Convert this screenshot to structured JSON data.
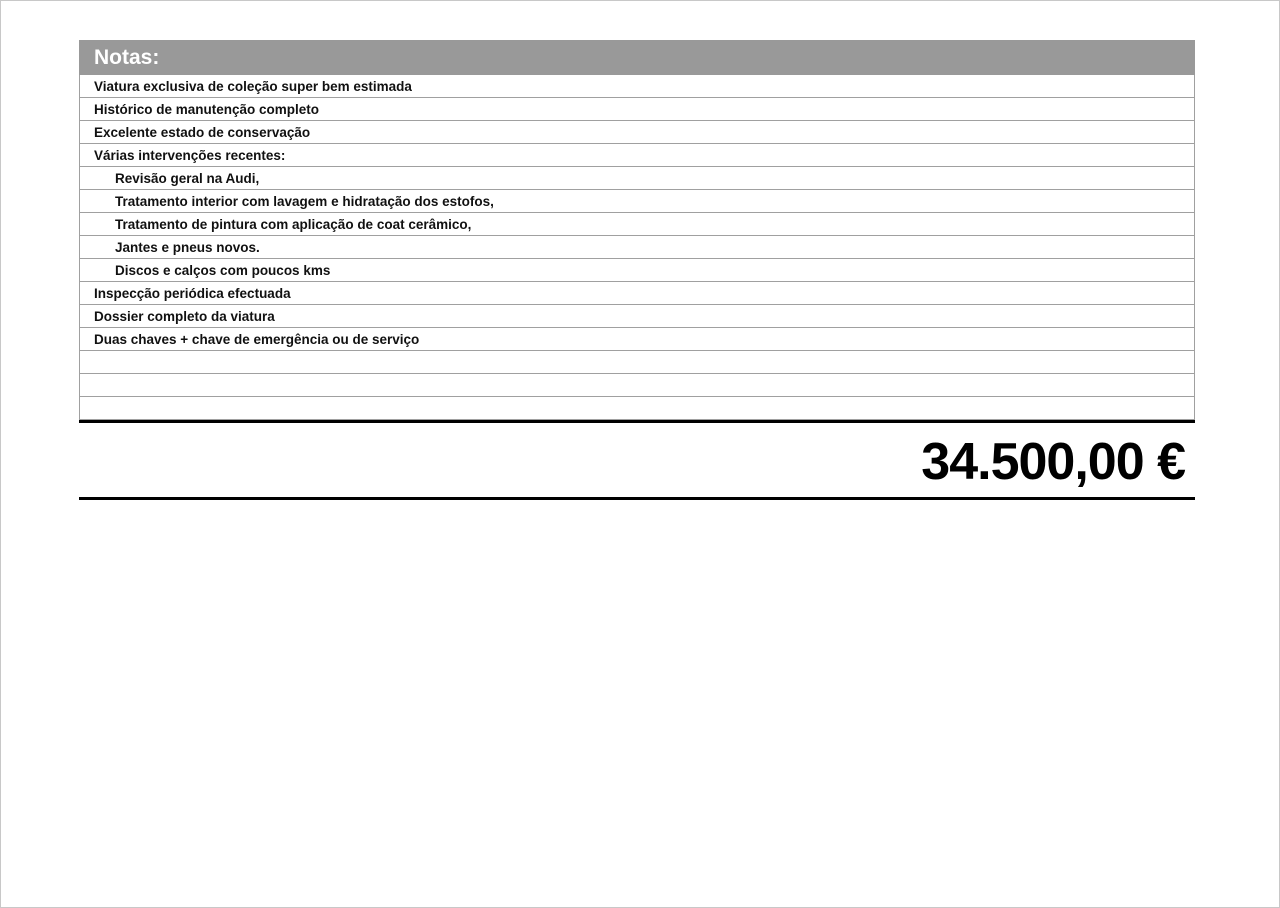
{
  "notes": {
    "title": "Notas:",
    "items": [
      {
        "text": "Viatura exclusiva de coleção super bem estimada",
        "indent": false
      },
      {
        "text": "Histórico de manutenção completo",
        "indent": false
      },
      {
        "text": "Excelente estado de conservação",
        "indent": false
      },
      {
        "text": "Várias intervenções recentes:",
        "indent": false
      },
      {
        "text": "Revisão geral na Audi,",
        "indent": true
      },
      {
        "text": "Tratamento interior com lavagem e hidratação dos estofos,",
        "indent": true
      },
      {
        "text": "Tratamento de pintura com aplicação de coat cerâmico,",
        "indent": true
      },
      {
        "text": "Jantes e pneus novos.",
        "indent": true
      },
      {
        "text": "Discos e calços com poucos kms",
        "indent": true
      },
      {
        "text": "Inspecção periódica efectuada",
        "indent": false
      },
      {
        "text": "Dossier completo da viatura",
        "indent": false
      },
      {
        "text": "Duas chaves + chave de emergência ou de serviço",
        "indent": false
      },
      {
        "text": "",
        "indent": false
      },
      {
        "text": "",
        "indent": false
      },
      {
        "text": "",
        "indent": false
      }
    ]
  },
  "price": "34.500,00 €"
}
